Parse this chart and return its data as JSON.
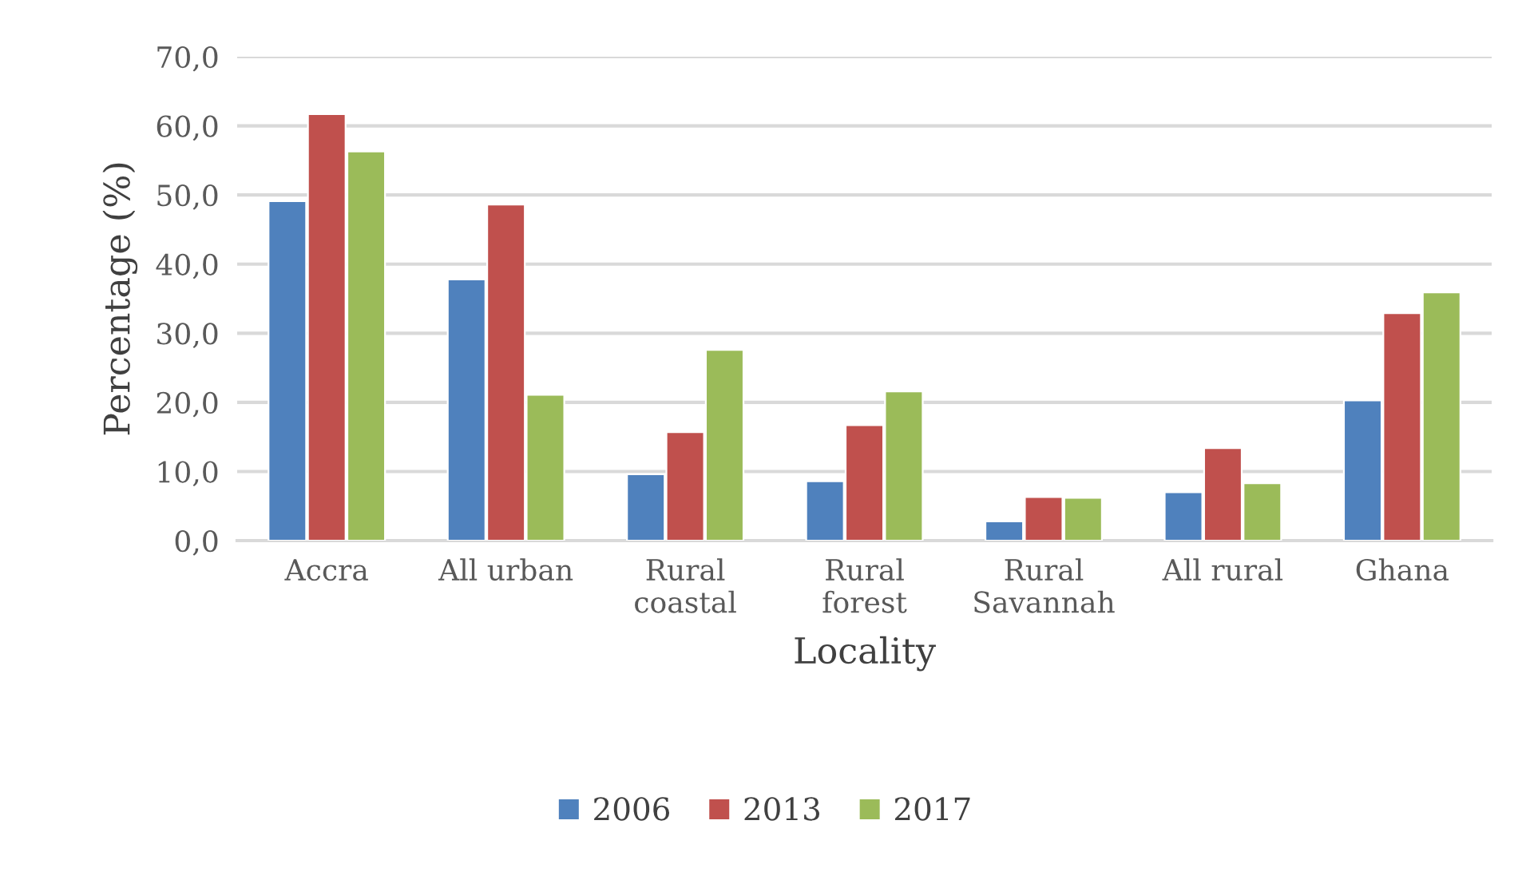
{
  "chart_data": {
    "type": "bar",
    "xlabel": "Locality",
    "ylabel": "Percentage (%)",
    "categories": [
      "Accra",
      "All urban",
      "Rural\ncoastal",
      "Rural\nforest",
      "Rural\nSavannah",
      "All rural",
      "Ghana"
    ],
    "series": [
      {
        "name": "2006",
        "color": "#4f81bd",
        "values": [
          49.1,
          37.8,
          9.6,
          8.6,
          2.8,
          7.0,
          20.3
        ]
      },
      {
        "name": "2013",
        "color": "#c0504d",
        "values": [
          61.7,
          48.6,
          15.7,
          16.7,
          6.3,
          13.4,
          32.9
        ]
      },
      {
        "name": "2017",
        "color": "#9bbb59",
        "values": [
          56.3,
          21.1,
          27.6,
          21.6,
          6.2,
          8.3,
          35.9
        ]
      }
    ],
    "ylim": [
      0,
      70
    ],
    "yticks": [
      {
        "value": 0,
        "label": "0,0"
      },
      {
        "value": 10,
        "label": "10,0"
      },
      {
        "value": 20,
        "label": "20,0"
      },
      {
        "value": 30,
        "label": "30,0"
      },
      {
        "value": 40,
        "label": "40,0"
      },
      {
        "value": 50,
        "label": "50,0"
      },
      {
        "value": 60,
        "label": "60,0"
      },
      {
        "value": 70,
        "label": "70,0"
      }
    ],
    "grid": "y",
    "legend": "bottom"
  }
}
